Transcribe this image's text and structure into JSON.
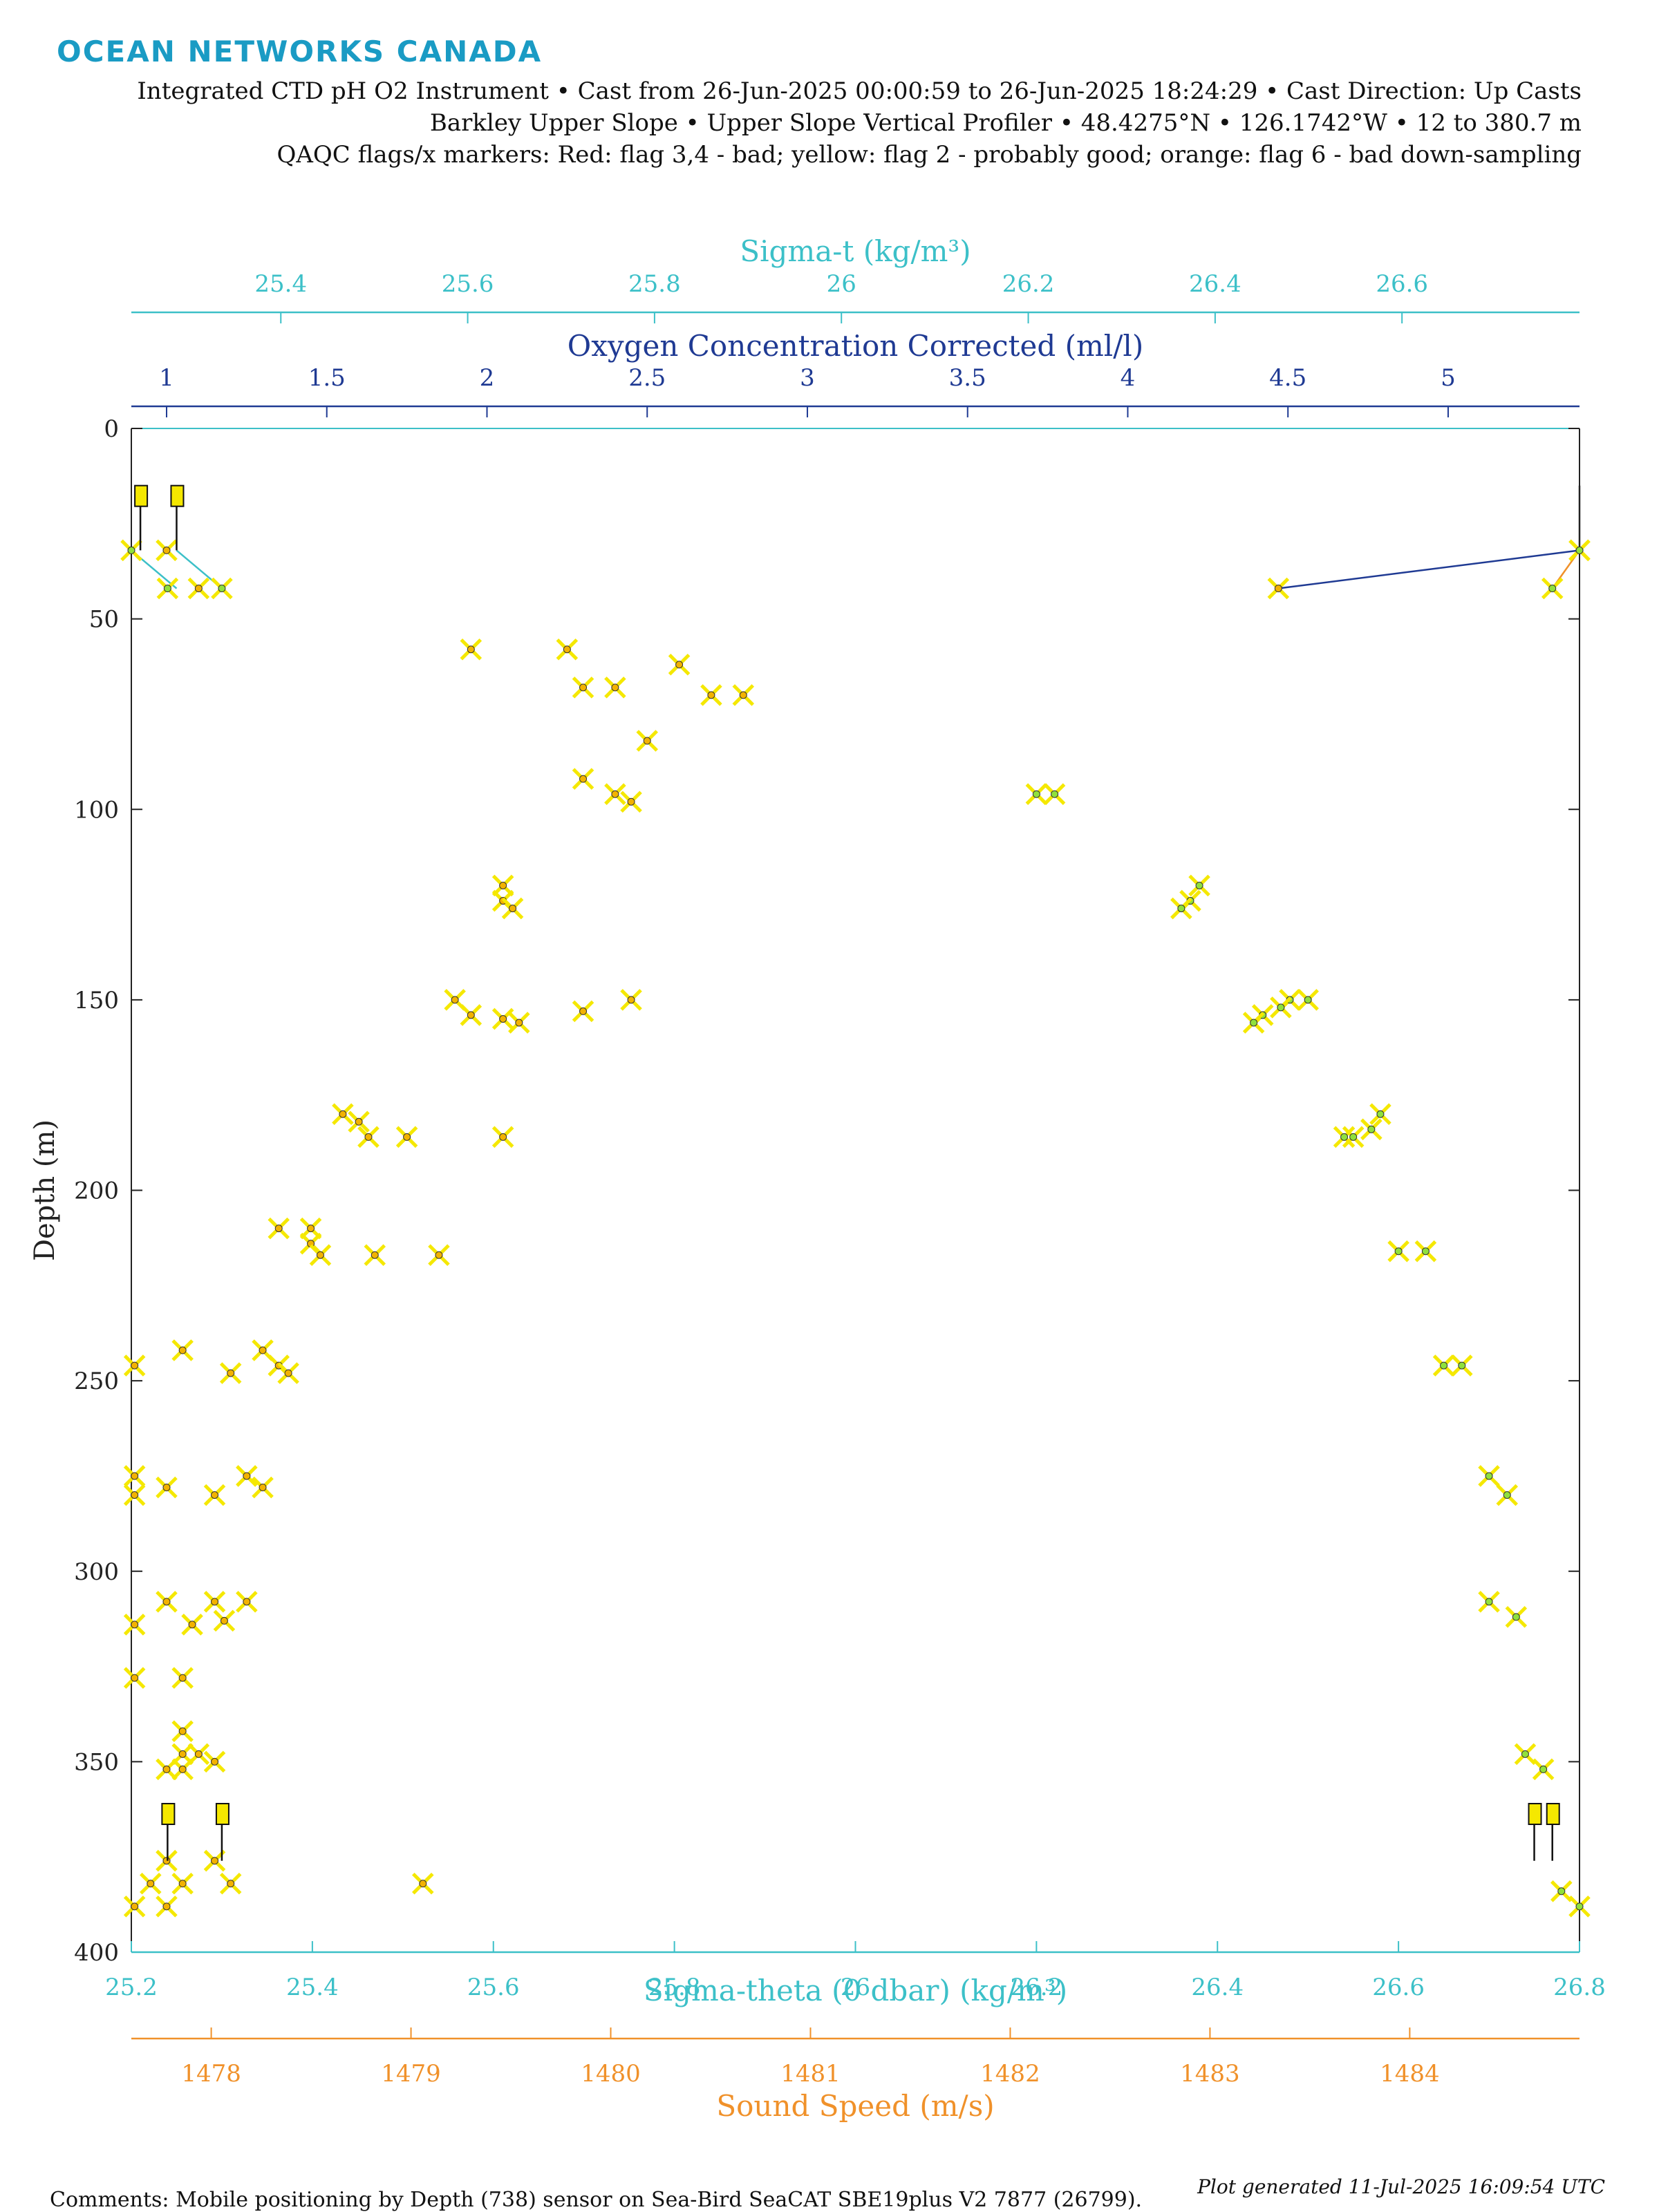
{
  "header": {
    "brand": "OCEAN NETWORKS CANADA",
    "line1": "Integrated CTD pH O2 Instrument • Cast from 26-Jun-2025 00:00:59 to 26-Jun-2025 18:24:29 • Cast Direction: Up Casts",
    "line2": "Barkley Upper Slope • Upper Slope Vertical Profiler • 48.4275°N • 126.1742°W • 12 to 380.7 m",
    "line3": "QAQC flags/x markers: Red: flag 3,4 - bad; yellow: flag 2 - probably good; orange: flag 6 - bad down-sampling"
  },
  "footer": {
    "comments": "Comments: Mobile positioning by Depth (738) sensor on Sea-Bird SeaCAT SBE19plus V2 7877 (26799).",
    "generated": "Plot generated 11-Jul-2025 16:09:54 UTC"
  },
  "colors": {
    "sigma": "#3cc0c8",
    "oxygen": "#1f3a93",
    "sound": "#f0912a",
    "flag_yellow": "#f5e800",
    "green_marker": "#8fe03c",
    "axis": "#222222"
  },
  "chart_data": {
    "type": "scatter",
    "grid": false,
    "y_axis": {
      "label": "Depth (m)",
      "range": [
        0,
        400
      ],
      "reversed": true,
      "ticks": [
        0,
        50,
        100,
        150,
        200,
        250,
        300,
        350,
        400
      ]
    },
    "axes": [
      {
        "id": "sigma_theta",
        "label": "Sigma-theta (0 dbar) (kg/m³)",
        "position": "bottom",
        "range": [
          25.2,
          26.8
        ],
        "ticks": [
          25.2,
          25.4,
          25.6,
          25.8,
          26,
          26.2,
          26.4,
          26.6,
          26.8
        ],
        "tick_labels": [
          "25.2",
          "25.4",
          "25.6",
          "25.8",
          "26",
          "26.2",
          "26.4",
          "26.6",
          "26.8"
        ]
      },
      {
        "id": "sound_speed",
        "label": "Sound Speed (m/s)",
        "position": "bottom-offset",
        "range": [
          1477.6,
          1484.85
        ],
        "ticks": [
          1478,
          1479,
          1480,
          1481,
          1482,
          1483,
          1484
        ],
        "tick_labels": [
          "1478",
          "1479",
          "1480",
          "1481",
          "1482",
          "1483",
          "1484"
        ]
      },
      {
        "id": "sigma_t",
        "label": "Sigma-t (kg/m³)",
        "position": "top-offset",
        "range": [
          25.24,
          26.79
        ],
        "ticks": [
          25.4,
          25.6,
          25.8,
          26,
          26.2,
          26.4,
          26.6
        ],
        "tick_labels": [
          "25.4",
          "25.6",
          "25.8",
          "26",
          "26.2",
          "26.4",
          "26.6"
        ]
      },
      {
        "id": "oxygen",
        "label": "Oxygen Concentration Corrected (ml/l)",
        "position": "top",
        "range": [
          0.89,
          5.41
        ],
        "ticks": [
          1,
          1.5,
          2,
          2.5,
          3,
          3.5,
          4,
          4.5,
          5
        ],
        "tick_labels": [
          "1",
          "1.5",
          "2",
          "2.5",
          "3",
          "3.5",
          "4",
          "4.5",
          "5"
        ]
      }
    ],
    "series": [
      {
        "axis": "oxygen",
        "color": "#1f3a93",
        "marker": "x-yellow",
        "points": [
          [
            5.41,
            32
          ],
          [
            4.47,
            42
          ],
          [
            1.1,
            42
          ],
          [
            1.0,
            32
          ],
          [
            2.25,
            58
          ],
          [
            1.95,
            58
          ],
          [
            2.4,
            68
          ],
          [
            2.3,
            68
          ],
          [
            2.6,
            62
          ],
          [
            2.8,
            70
          ],
          [
            2.7,
            70
          ],
          [
            2.5,
            82
          ],
          [
            2.3,
            92
          ],
          [
            2.4,
            96
          ],
          [
            2.45,
            98
          ],
          [
            2.05,
            120
          ],
          [
            2.05,
            124
          ],
          [
            2.08,
            126
          ],
          [
            1.9,
            150
          ],
          [
            1.95,
            154
          ],
          [
            2.05,
            155
          ],
          [
            2.1,
            156
          ],
          [
            2.3,
            153
          ],
          [
            2.45,
            150
          ],
          [
            1.55,
            180
          ],
          [
            1.6,
            182
          ],
          [
            1.63,
            186
          ],
          [
            1.75,
            186
          ],
          [
            2.05,
            186
          ],
          [
            1.35,
            210
          ],
          [
            1.45,
            210
          ],
          [
            1.45,
            214
          ],
          [
            1.48,
            217
          ],
          [
            1.65,
            217
          ],
          [
            1.85,
            217
          ],
          [
            1.05,
            242
          ],
          [
            1.3,
            242
          ],
          [
            1.35,
            246
          ],
          [
            1.38,
            248
          ],
          [
            1.2,
            248
          ],
          [
            0.9,
            246
          ],
          [
            0.9,
            275
          ],
          [
            0.9,
            280
          ],
          [
            1.0,
            278
          ],
          [
            1.25,
            275
          ],
          [
            1.3,
            278
          ],
          [
            1.15,
            280
          ],
          [
            0.9,
            314
          ],
          [
            1.0,
            308
          ],
          [
            1.08,
            314
          ],
          [
            1.15,
            308
          ],
          [
            1.18,
            313
          ],
          [
            1.25,
            308
          ],
          [
            0.9,
            328
          ],
          [
            1.05,
            328
          ],
          [
            1.05,
            342
          ],
          [
            1.05,
            348
          ],
          [
            1.1,
            348
          ],
          [
            1.15,
            350
          ],
          [
            1.0,
            352
          ],
          [
            1.05,
            352
          ],
          [
            1.0,
            376
          ],
          [
            1.15,
            376
          ],
          [
            0.95,
            382
          ],
          [
            1.05,
            382
          ],
          [
            1.2,
            382
          ],
          [
            1.8,
            382
          ],
          [
            0.9,
            388
          ],
          [
            1.0,
            388
          ]
        ]
      },
      {
        "axis": "sigma_theta",
        "color": "#3cc0c8",
        "marker": "x-green",
        "points": [
          [
            26.8,
            32
          ],
          [
            26.77,
            42
          ],
          [
            25.3,
            42
          ],
          [
            25.24,
            42
          ],
          [
            25.2,
            32
          ],
          [
            26.2,
            96
          ],
          [
            26.22,
            96
          ],
          [
            26.38,
            120
          ],
          [
            26.37,
            124
          ],
          [
            26.36,
            126
          ],
          [
            26.5,
            150
          ],
          [
            26.48,
            150
          ],
          [
            26.47,
            152
          ],
          [
            26.45,
            154
          ],
          [
            26.44,
            156
          ],
          [
            26.58,
            180
          ],
          [
            26.57,
            184
          ],
          [
            26.54,
            186
          ],
          [
            26.55,
            186
          ],
          [
            26.6,
            216
          ],
          [
            26.63,
            216
          ],
          [
            26.65,
            246
          ],
          [
            26.67,
            246
          ],
          [
            26.7,
            275
          ],
          [
            26.72,
            280
          ],
          [
            26.7,
            308
          ],
          [
            26.73,
            312
          ],
          [
            26.74,
            348
          ],
          [
            26.76,
            352
          ],
          [
            26.78,
            384
          ],
          [
            26.8,
            388
          ]
        ]
      }
    ],
    "flags": [
      {
        "axis": "sigma_theta",
        "x": 25.21,
        "top": 15,
        "tip": 32
      },
      {
        "axis": "sigma_theta",
        "x": 25.25,
        "top": 15,
        "tip": 32
      },
      {
        "axis": "sigma_theta",
        "x": 25.24,
        "top": 361,
        "tip": 376
      },
      {
        "axis": "sigma_theta",
        "x": 25.3,
        "top": 361,
        "tip": 376
      },
      {
        "axis": "sigma_theta",
        "x": 26.75,
        "top": 361,
        "tip": 376
      },
      {
        "axis": "sigma_theta",
        "x": 26.77,
        "top": 361,
        "tip": 376
      }
    ]
  }
}
